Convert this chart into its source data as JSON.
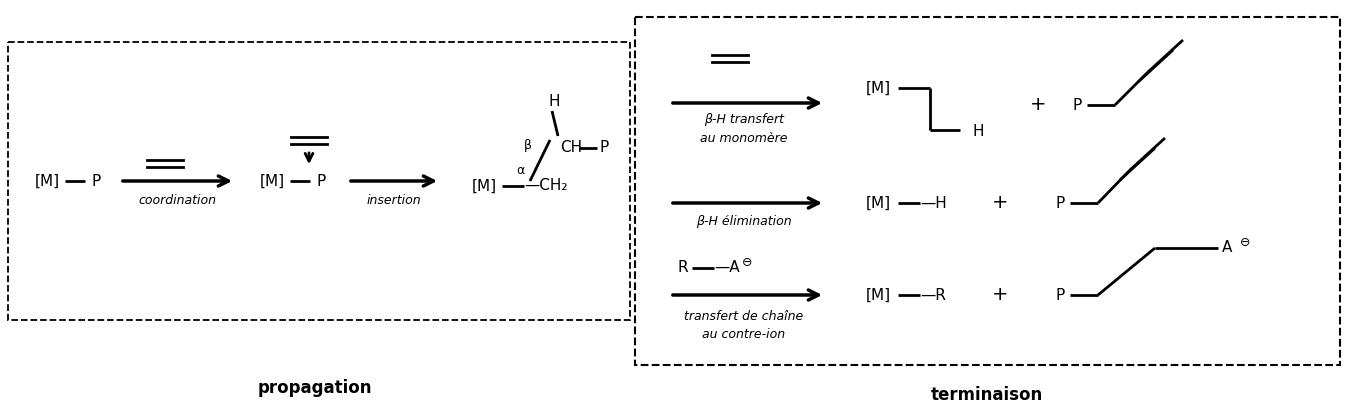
{
  "fig_width": 13.53,
  "fig_height": 4.13,
  "dpi": 100,
  "bg_color": "#ffffff",
  "propagation_label": "propagation",
  "terminaison_label": "terminaison",
  "coordination_label": "coordination",
  "insertion_label": "insertion"
}
